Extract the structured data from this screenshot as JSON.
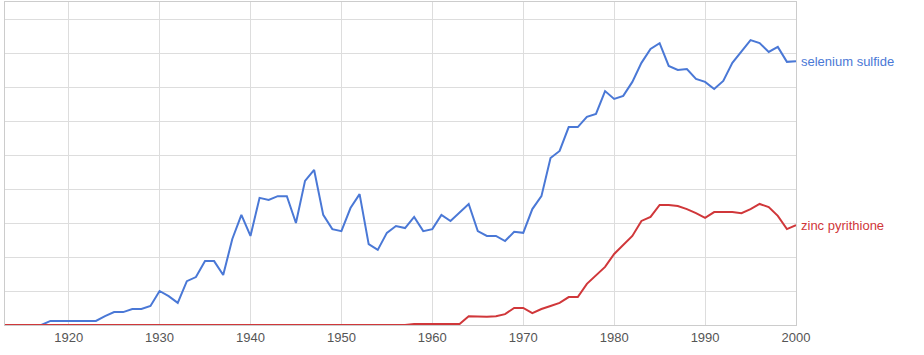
{
  "chart_data": {
    "type": "line",
    "x": [
      1913,
      1914,
      1915,
      1916,
      1917,
      1918,
      1919,
      1920,
      1921,
      1922,
      1923,
      1924,
      1925,
      1926,
      1927,
      1928,
      1929,
      1930,
      1931,
      1932,
      1933,
      1934,
      1935,
      1936,
      1937,
      1938,
      1939,
      1940,
      1941,
      1942,
      1943,
      1944,
      1945,
      1946,
      1947,
      1948,
      1949,
      1950,
      1951,
      1952,
      1953,
      1954,
      1955,
      1956,
      1957,
      1958,
      1959,
      1960,
      1961,
      1962,
      1963,
      1964,
      1965,
      1966,
      1967,
      1968,
      1969,
      1970,
      1971,
      1972,
      1973,
      1974,
      1975,
      1976,
      1977,
      1978,
      1979,
      1980,
      1981,
      1982,
      1983,
      1984,
      1985,
      1986,
      1987,
      1988,
      1989,
      1990,
      1991,
      1992,
      1993,
      1994,
      1995,
      1996,
      1997,
      1998,
      1999,
      2000
    ],
    "series": [
      {
        "name": "selenium sulfide",
        "color": "#4a78d6",
        "values": [
          0,
          0,
          0,
          0,
          0,
          0.12,
          0.12,
          0.12,
          0.12,
          0.12,
          0.12,
          0.26,
          0.38,
          0.38,
          0.47,
          0.47,
          0.56,
          1.0,
          0.85,
          0.65,
          1.29,
          1.41,
          1.88,
          1.88,
          1.47,
          2.53,
          3.24,
          2.62,
          3.74,
          3.68,
          3.79,
          3.79,
          3.0,
          4.24,
          4.56,
          3.24,
          2.82,
          2.76,
          3.44,
          3.85,
          2.38,
          2.21,
          2.71,
          2.91,
          2.85,
          3.18,
          2.76,
          2.82,
          3.24,
          3.06,
          3.32,
          3.56,
          2.76,
          2.62,
          2.62,
          2.47,
          2.74,
          2.71,
          3.41,
          3.79,
          4.91,
          5.12,
          5.82,
          5.82,
          6.12,
          6.21,
          6.88,
          6.65,
          6.74,
          7.15,
          7.71,
          8.12,
          8.29,
          7.62,
          7.5,
          7.53,
          7.24,
          7.15,
          6.94,
          7.18,
          7.71,
          8.06,
          8.38,
          8.29,
          8.03,
          8.18,
          7.74,
          7.76
        ]
      },
      {
        "name": "zinc pyrithione",
        "color": "#d0373a",
        "values": [
          0,
          0,
          0,
          0,
          0,
          0,
          0,
          0,
          0,
          0,
          0,
          0,
          0,
          0,
          0,
          0,
          0,
          0,
          0,
          0,
          0,
          0,
          0,
          0,
          0,
          0,
          0,
          0,
          0,
          0,
          0,
          0,
          0,
          0,
          0,
          0,
          0,
          0,
          0,
          0,
          0,
          0,
          0,
          0,
          0,
          0.03,
          0.03,
          0.03,
          0.03,
          0.03,
          0.03,
          0.26,
          0.24,
          0.24,
          0.26,
          0.32,
          0.5,
          0.5,
          0.35,
          0.47,
          0.56,
          0.65,
          0.82,
          0.82,
          1.21,
          1.47,
          1.71,
          2.09,
          2.35,
          2.62,
          3.06,
          3.18,
          3.53,
          3.53,
          3.5,
          3.41,
          3.29,
          3.15,
          3.32,
          3.32,
          3.32,
          3.29,
          3.41,
          3.56,
          3.47,
          3.21,
          2.82,
          2.94
        ]
      }
    ],
    "xlim": [
      1913,
      2000
    ],
    "xticks": [
      1920,
      1930,
      1940,
      1950,
      1960,
      1970,
      1980,
      1990,
      2000
    ],
    "ylim": [
      0,
      9.5
    ],
    "yticks": [
      0,
      1,
      2,
      3,
      4,
      5,
      6,
      7,
      8,
      9
    ],
    "grid": true,
    "tick_labels": "x"
  }
}
